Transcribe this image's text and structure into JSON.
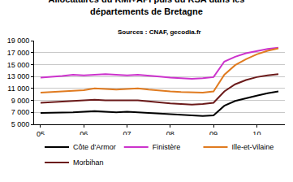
{
  "chart_data": {
    "type": "line",
    "title": "Allocataires du RMI+API puis du RSA dans les départements de Bretagne",
    "subtitle": "Sources : CNAF, gecodia.fr",
    "categories": [
      "05",
      null,
      null,
      null,
      "06",
      null,
      null,
      null,
      "07",
      null,
      null,
      null,
      "08",
      null,
      null,
      null,
      "09",
      null,
      null,
      null,
      "10",
      null,
      null
    ],
    "series": [
      {
        "name": "Côte d'Armor",
        "color": "#000000",
        "values": [
          6900,
          6900,
          7000,
          7000,
          7100,
          7200,
          7100,
          7000,
          7100,
          7000,
          6900,
          6700,
          6600,
          6500,
          6400,
          6400,
          6500,
          8100,
          8900,
          9400,
          9800,
          10200,
          10500
        ]
      },
      {
        "name": "Finistère",
        "color": "#cc33cc",
        "values": [
          12800,
          12900,
          13100,
          13300,
          13200,
          13300,
          13400,
          13300,
          13200,
          13300,
          13200,
          13000,
          12800,
          12700,
          12600,
          12700,
          12900,
          15500,
          16300,
          16900,
          17300,
          17600,
          17800
        ]
      },
      {
        "name": "Ille-et-Vilaine",
        "color": "#e07b20",
        "values": [
          10300,
          10400,
          10500,
          10600,
          10700,
          11000,
          10900,
          10800,
          10900,
          11000,
          10800,
          10600,
          10500,
          10400,
          10300,
          10300,
          10500,
          13300,
          14900,
          15900,
          16700,
          17300,
          17700
        ]
      },
      {
        "name": "Morbihan",
        "color": "#6b1a1a",
        "values": [
          8600,
          8700,
          8800,
          8900,
          9000,
          9100,
          9000,
          8950,
          9000,
          9000,
          8800,
          8600,
          8500,
          8400,
          8300,
          8400,
          8600,
          10500,
          11700,
          12400,
          12900,
          13200,
          13400
        ]
      }
    ],
    "ylim": [
      5000,
      19000
    ],
    "yticks": [
      {
        "value": 5000,
        "label": "5 000"
      },
      {
        "value": 7000,
        "label": "7 000"
      },
      {
        "value": 9000,
        "label": "9 000"
      },
      {
        "value": 11000,
        "label": "11 000"
      },
      {
        "value": 13000,
        "label": "13 000"
      },
      {
        "value": 15000,
        "label": "15 000"
      },
      {
        "value": 17000,
        "label": "17 000"
      },
      {
        "value": 19000,
        "label": "19 000"
      }
    ],
    "grid": true,
    "legend": "bottom"
  }
}
